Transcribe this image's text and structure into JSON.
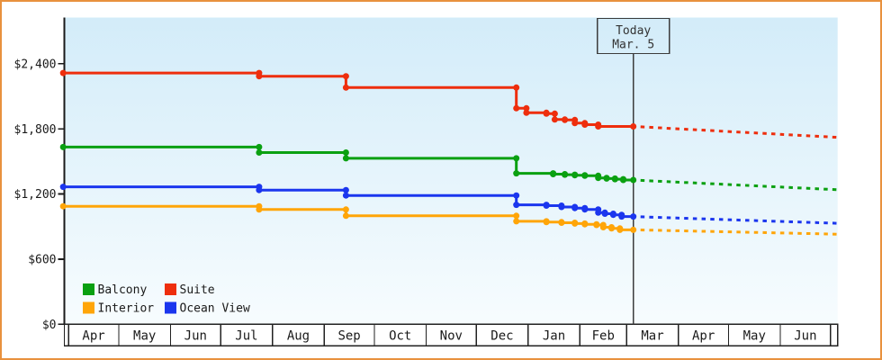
{
  "chart_data": {
    "type": "line",
    "description": "Cabin price history line chart with stepped price lines, a Today marker and dashed price forecasts",
    "y_axis": {
      "ticks": [
        {
          "value": 0,
          "label": "$0"
        },
        {
          "value": 600,
          "label": "$600"
        },
        {
          "value": 1200,
          "label": "$1,200"
        },
        {
          "value": 1800,
          "label": "$1,800"
        },
        {
          "value": 2400,
          "label": "$2,400"
        }
      ],
      "range": [
        0,
        2825
      ]
    },
    "x_axis": {
      "unit": "days",
      "months": [
        {
          "label": "Apr",
          "days": 30
        },
        {
          "label": "May",
          "days": 31
        },
        {
          "label": "Jun",
          "days": 30
        },
        {
          "label": "Jul",
          "days": 31
        },
        {
          "label": "Aug",
          "days": 31
        },
        {
          "label": "Sep",
          "days": 30
        },
        {
          "label": "Oct",
          "days": 31
        },
        {
          "label": "Nov",
          "days": 30
        },
        {
          "label": "Dec",
          "days": 31
        },
        {
          "label": "Jan",
          "days": 31
        },
        {
          "label": "Feb",
          "days": 28
        },
        {
          "label": "Mar",
          "days": 31
        },
        {
          "label": "Apr",
          "days": 30
        },
        {
          "label": "May",
          "days": 31
        },
        {
          "label": "Jun",
          "days": 30
        }
      ],
      "leading_days": 2.5,
      "trailing_days": 4.3
    },
    "today": {
      "line1": "Today",
      "line2": "Mar. 5",
      "day": 338
    },
    "series": [
      {
        "name": "Suite",
        "color": "#ee2e0d",
        "points": [
          [
            0,
            2315
          ],
          [
            114,
            2285
          ],
          [
            166,
            2180
          ],
          [
            268,
            1990
          ],
          [
            274,
            1948
          ],
          [
            286,
            1940
          ],
          [
            291,
            1886
          ],
          [
            297,
            1882
          ],
          [
            303,
            1853
          ],
          [
            309,
            1839
          ],
          [
            317,
            1822
          ]
        ],
        "value_today": 1822,
        "projection_end": [
          460,
          1722
        ]
      },
      {
        "name": "Balcony",
        "color": "#0aa011",
        "points": [
          [
            0,
            1632
          ],
          [
            114,
            1582
          ],
          [
            166,
            1529
          ],
          [
            268,
            1390
          ],
          [
            290,
            1383
          ],
          [
            297,
            1378
          ],
          [
            303,
            1373
          ],
          [
            309,
            1368
          ],
          [
            317,
            1348
          ],
          [
            322,
            1342
          ],
          [
            327,
            1336
          ],
          [
            332,
            1329
          ]
        ],
        "value_today": 1329,
        "projection_end": [
          460,
          1239
        ]
      },
      {
        "name": "Ocean View",
        "color": "#1b36ee",
        "points": [
          [
            0,
            1266
          ],
          [
            114,
            1236
          ],
          [
            166,
            1186
          ],
          [
            268,
            1100
          ],
          [
            286,
            1093
          ],
          [
            295,
            1080
          ],
          [
            303,
            1070
          ],
          [
            309,
            1058
          ],
          [
            317,
            1028
          ],
          [
            321,
            1018
          ],
          [
            326,
            1008
          ],
          [
            331,
            992
          ]
        ],
        "value_today": 992,
        "projection_end": [
          460,
          930
        ]
      },
      {
        "name": "Interior",
        "color": "#ffa508",
        "points": [
          [
            0,
            1087
          ],
          [
            114,
            1057
          ],
          [
            166,
            999
          ],
          [
            268,
            948
          ],
          [
            286,
            941
          ],
          [
            295,
            935
          ],
          [
            303,
            928
          ],
          [
            309,
            921
          ],
          [
            316,
            914
          ],
          [
            320,
            894
          ],
          [
            325,
            883
          ],
          [
            330,
            870
          ]
        ],
        "value_today": 870,
        "projection_end": [
          460,
          830
        ]
      }
    ],
    "legend": {
      "rows": [
        [
          "Balcony",
          "Suite"
        ],
        [
          "Interior",
          "Ocean View"
        ]
      ]
    },
    "frame_color": "#e8913d",
    "axis_color": "#1a1a1a",
    "today_marker_color": "#3c3c3c",
    "plot_gradient_top": "#d3ecf9",
    "plot_gradient_bottom": "#f7fcfe"
  }
}
